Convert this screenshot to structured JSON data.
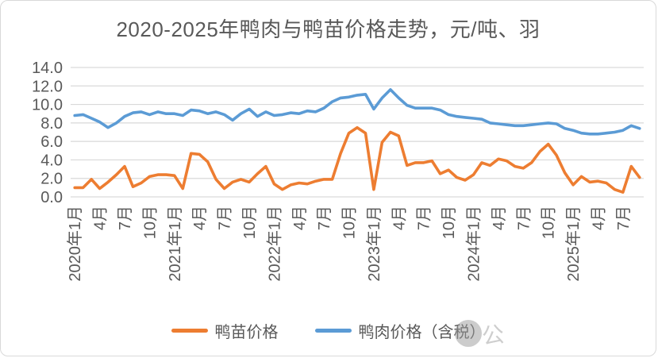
{
  "chart_data": {
    "type": "line",
    "title": "2020-2025年鸭肉与鸭苗价格走势，元/吨、羽",
    "xlabel": "",
    "ylabel": "",
    "ylim": [
      0,
      14
    ],
    "yticklabels": [
      "0.0",
      "2.0",
      "4.0",
      "6.0",
      "8.0",
      "10.0",
      "12.0",
      "14.0"
    ],
    "xticklabels": [
      "2020年1月",
      "4月",
      "7月",
      "10月",
      "2021年1月",
      "4月",
      "7月",
      "10月",
      "2022年1月",
      "4月",
      "7月",
      "10月",
      "2023年1月",
      "4月",
      "7月",
      "10月",
      "2024年1月",
      "4月",
      "7月",
      "10月",
      "2025年1月",
      "4月",
      "7月"
    ],
    "xtick_every": 3,
    "grid": true,
    "grid_color": "#d9d9d9",
    "text_color": "#595959",
    "legend_position": "bottom",
    "x": [
      "2020-01",
      "2020-02",
      "2020-03",
      "2020-04",
      "2020-05",
      "2020-06",
      "2020-07",
      "2020-08",
      "2020-09",
      "2020-10",
      "2020-11",
      "2020-12",
      "2021-01",
      "2021-02",
      "2021-03",
      "2021-04",
      "2021-05",
      "2021-06",
      "2021-07",
      "2021-08",
      "2021-09",
      "2021-10",
      "2021-11",
      "2021-12",
      "2022-01",
      "2022-02",
      "2022-03",
      "2022-04",
      "2022-05",
      "2022-06",
      "2022-07",
      "2022-08",
      "2022-09",
      "2022-10",
      "2022-11",
      "2022-12",
      "2023-01",
      "2023-02",
      "2023-03",
      "2023-04",
      "2023-05",
      "2023-06",
      "2023-07",
      "2023-08",
      "2023-09",
      "2023-10",
      "2023-11",
      "2023-12",
      "2024-01",
      "2024-02",
      "2024-03",
      "2024-04",
      "2024-05",
      "2024-06",
      "2024-07",
      "2024-08",
      "2024-09",
      "2024-10",
      "2024-11",
      "2024-12",
      "2025-01",
      "2025-02",
      "2025-03",
      "2025-04",
      "2025-05",
      "2025-06",
      "2025-07",
      "2025-08",
      "2025-09"
    ],
    "series": [
      {
        "name": "鸭苗价格",
        "color": "#ED7D31",
        "values": [
          1.0,
          1.0,
          1.9,
          0.9,
          1.6,
          2.4,
          3.3,
          1.1,
          1.5,
          2.2,
          2.4,
          2.4,
          2.3,
          0.9,
          4.7,
          4.6,
          3.8,
          1.9,
          0.9,
          1.6,
          1.9,
          1.6,
          2.5,
          3.3,
          1.4,
          0.8,
          1.3,
          1.5,
          1.4,
          1.7,
          1.9,
          1.9,
          4.7,
          6.9,
          7.5,
          6.9,
          0.8,
          5.9,
          7.0,
          6.6,
          3.4,
          3.7,
          3.7,
          3.9,
          2.5,
          2.9,
          2.1,
          1.8,
          2.4,
          3.7,
          3.4,
          4.1,
          3.9,
          3.3,
          3.1,
          3.7,
          4.9,
          5.7,
          4.5,
          2.6,
          1.3,
          2.2,
          1.6,
          1.7,
          1.5,
          0.8,
          0.5,
          3.3,
          2.1
        ]
      },
      {
        "name": "鸭肉价格（含税）",
        "color": "#5B9BD5",
        "values": [
          8.8,
          8.9,
          8.5,
          8.1,
          7.5,
          8.0,
          8.7,
          9.1,
          9.2,
          8.9,
          9.2,
          9.0,
          9.0,
          8.8,
          9.4,
          9.3,
          9.0,
          9.2,
          8.9,
          8.3,
          9.0,
          9.5,
          8.7,
          9.2,
          8.8,
          8.9,
          9.1,
          9.0,
          9.3,
          9.2,
          9.6,
          10.3,
          10.7,
          10.8,
          11.0,
          11.1,
          9.5,
          10.7,
          11.6,
          10.7,
          9.9,
          9.6,
          9.6,
          9.6,
          9.4,
          8.9,
          8.7,
          8.6,
          8.5,
          8.4,
          8.0,
          7.9,
          7.8,
          7.7,
          7.7,
          7.8,
          7.9,
          8.0,
          7.9,
          7.4,
          7.2,
          6.9,
          6.8,
          6.8,
          6.9,
          7.0,
          7.2,
          7.7,
          7.4
        ]
      }
    ]
  },
  "watermark": {
    "glyph": "公"
  }
}
